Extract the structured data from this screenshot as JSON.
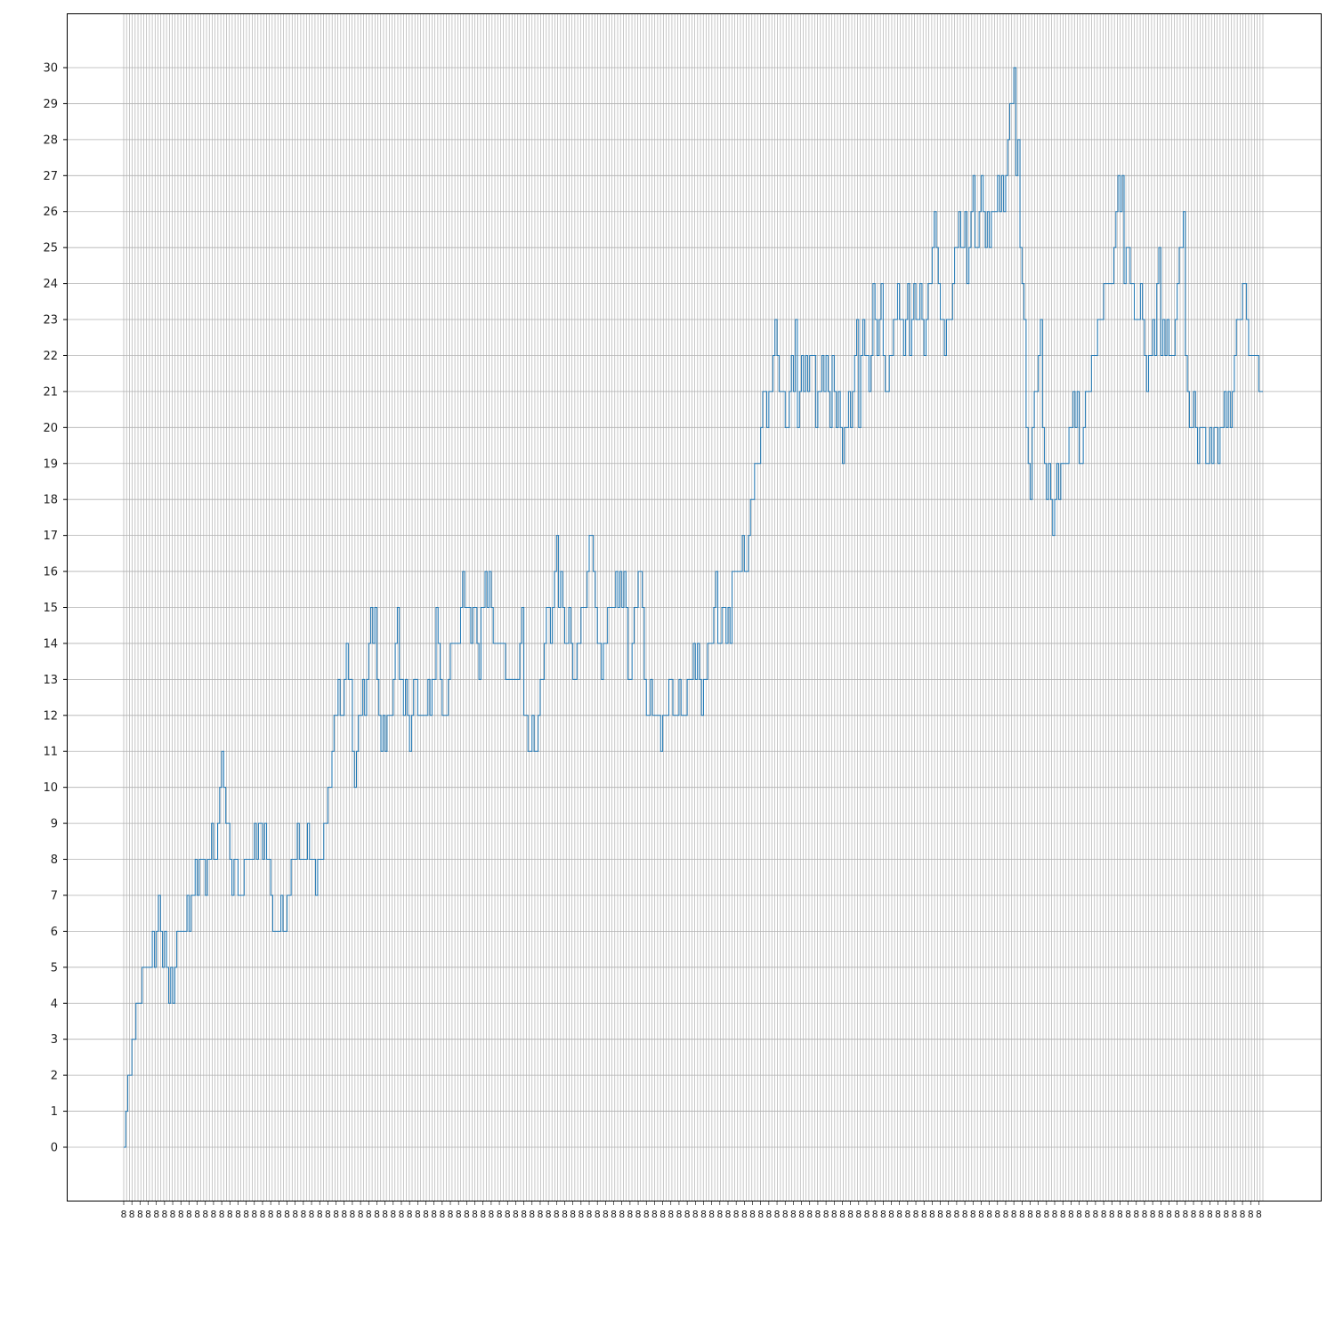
{
  "chart_data": {
    "type": "line",
    "title": "",
    "xlabel": "",
    "ylabel": "",
    "line_color": "#1f77b4",
    "grid_color": "#b0b0b0",
    "grid": true,
    "x_grid_count": 400,
    "xlim": [
      0,
      400
    ],
    "ylim": [
      -1.5,
      31.5
    ],
    "yticks": [
      0,
      1,
      2,
      3,
      4,
      5,
      6,
      7,
      8,
      9,
      10,
      11,
      12,
      13,
      14,
      15,
      16,
      17,
      18,
      19,
      20,
      21,
      22,
      23,
      24,
      25,
      26,
      27,
      28,
      29,
      30
    ],
    "xtick_labels_note": "overlapping illegible labels at every step",
    "y": [
      0,
      1,
      2,
      2,
      3,
      3,
      4,
      4,
      4,
      5,
      5,
      5,
      5,
      5,
      6,
      5,
      6,
      7,
      6,
      5,
      6,
      5,
      4,
      5,
      4,
      5,
      6,
      6,
      6,
      6,
      6,
      7,
      6,
      7,
      7,
      8,
      7,
      8,
      8,
      8,
      7,
      8,
      8,
      9,
      8,
      8,
      9,
      10,
      11,
      10,
      9,
      9,
      8,
      7,
      8,
      8,
      7,
      7,
      7,
      8,
      8,
      8,
      8,
      8,
      9,
      8,
      9,
      9,
      8,
      9,
      8,
      8,
      7,
      6,
      6,
      6,
      6,
      7,
      6,
      6,
      7,
      7,
      8,
      8,
      8,
      9,
      8,
      8,
      8,
      8,
      9,
      8,
      8,
      8,
      7,
      8,
      8,
      8,
      9,
      9,
      10,
      10,
      11,
      12,
      12,
      13,
      12,
      12,
      13,
      14,
      13,
      13,
      11,
      10,
      11,
      12,
      12,
      13,
      12,
      13,
      14,
      15,
      14,
      15,
      13,
      12,
      11,
      12,
      11,
      12,
      12,
      12,
      13,
      14,
      15,
      13,
      13,
      12,
      13,
      12,
      11,
      12,
      13,
      13,
      12,
      12,
      12,
      12,
      12,
      13,
      12,
      13,
      13,
      15,
      14,
      13,
      12,
      12,
      12,
      13,
      14,
      14,
      14,
      14,
      14,
      15,
      16,
      15,
      15,
      15,
      14,
      15,
      15,
      14,
      13,
      15,
      15,
      16,
      15,
      16,
      15,
      14,
      14,
      14,
      14,
      14,
      14,
      13,
      13,
      13,
      13,
      13,
      13,
      13,
      14,
      15,
      12,
      12,
      11,
      11,
      12,
      11,
      11,
      12,
      13,
      13,
      14,
      15,
      15,
      14,
      15,
      16,
      17,
      15,
      16,
      15,
      14,
      14,
      15,
      14,
      13,
      13,
      14,
      14,
      15,
      15,
      15,
      16,
      17,
      17,
      16,
      15,
      14,
      14,
      13,
      14,
      14,
      15,
      15,
      15,
      15,
      16,
      15,
      16,
      15,
      16,
      15,
      13,
      13,
      14,
      15,
      15,
      16,
      16,
      15,
      13,
      12,
      12,
      13,
      12,
      12,
      12,
      12,
      11,
      12,
      12,
      12,
      13,
      13,
      12,
      12,
      12,
      13,
      12,
      12,
      12,
      13,
      13,
      13,
      14,
      13,
      14,
      13,
      12,
      13,
      13,
      14,
      14,
      14,
      15,
      16,
      14,
      14,
      15,
      15,
      14,
      15,
      14,
      16,
      16,
      16,
      16,
      16,
      17,
      16,
      16,
      17,
      18,
      18,
      19,
      19,
      19,
      20,
      21,
      21,
      20,
      21,
      21,
      22,
      23,
      22,
      21,
      21,
      21,
      20,
      20,
      21,
      22,
      21,
      23,
      20,
      21,
      22,
      21,
      22,
      21,
      22,
      22,
      22,
      20,
      21,
      21,
      22,
      21,
      22,
      21,
      20,
      22,
      21,
      20,
      21,
      20,
      19,
      20,
      20,
      21,
      20,
      21,
      22,
      23,
      20,
      22,
      23,
      22,
      22,
      21,
      22,
      24,
      23,
      22,
      23,
      24,
      22,
      21,
      21,
      22,
      22,
      23,
      23,
      24,
      23,
      23,
      22,
      23,
      24,
      22,
      23,
      24,
      23,
      23,
      24,
      23,
      22,
      23,
      24,
      24,
      25,
      26,
      25,
      24,
      23,
      23,
      22,
      23,
      23,
      23,
      24,
      25,
      25,
      26,
      25,
      25,
      26,
      24,
      25,
      26,
      27,
      25,
      25,
      26,
      27,
      26,
      25,
      26,
      25,
      26,
      26,
      26,
      27,
      26,
      27,
      26,
      27,
      28,
      29,
      29,
      30,
      27,
      28,
      25,
      24,
      23,
      20,
      19,
      18,
      20,
      21,
      21,
      22,
      23,
      20,
      19,
      18,
      19,
      18,
      17,
      18,
      19,
      18,
      19,
      19,
      19,
      19,
      20,
      20,
      21,
      20,
      21,
      19,
      19,
      20,
      21,
      21,
      21,
      22,
      22,
      22,
      23,
      23,
      23,
      24,
      24,
      24,
      24,
      24,
      25,
      26,
      27,
      26,
      27,
      24,
      25,
      25,
      24,
      24,
      23,
      23,
      23,
      24,
      23,
      22,
      21,
      22,
      22,
      23,
      22,
      24,
      25,
      22,
      23,
      22,
      23,
      22,
      22,
      22,
      23,
      24,
      25,
      25,
      26,
      22,
      21,
      20,
      20,
      21,
      20,
      19,
      20,
      20,
      20,
      19,
      19,
      20,
      19,
      20,
      20,
      19,
      20,
      20,
      21,
      20,
      21,
      20,
      21,
      22,
      23,
      23,
      23,
      24,
      24,
      23,
      22,
      22,
      22,
      22,
      22,
      21,
      21,
      21
    ]
  }
}
